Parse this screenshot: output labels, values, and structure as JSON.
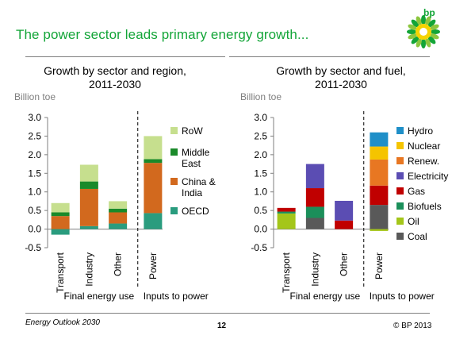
{
  "header": {
    "title": "The power sector leads primary energy growth...",
    "logo_text": "bp",
    "colors": {
      "title": "#13a538",
      "logo_green": "#13a538",
      "logo_yellow": "#f5d300"
    }
  },
  "footer": {
    "left": "Energy Outlook 2030",
    "page": "12",
    "right": "© BP 2013"
  },
  "chart_data": [
    {
      "type": "bar",
      "stacked": true,
      "title": "Growth by sector and region,\n2011-2030",
      "ylabel": "Billion toe",
      "ylim": [
        -0.5,
        3.0
      ],
      "yticks": [
        "3.0",
        "2.5",
        "2.0",
        "1.5",
        "1.0",
        "0.5",
        "0.0",
        "-0.5"
      ],
      "categories": [
        "Transport",
        "Industry",
        "Other",
        "Power"
      ],
      "groups": [
        {
          "label": "Final energy use",
          "categories": [
            "Transport",
            "Industry",
            "Other"
          ]
        },
        {
          "label": "Inputs to power",
          "categories": [
            "Power"
          ]
        }
      ],
      "legend_position": "right",
      "series": [
        {
          "name": "OECD",
          "color": "#2a9c7e",
          "values": [
            -0.15,
            0.08,
            0.15,
            0.43
          ]
        },
        {
          "name": "China &\nIndia",
          "color": "#d2691e",
          "values": [
            0.35,
            1.0,
            0.3,
            1.35
          ]
        },
        {
          "name": "Middle\nEast",
          "color": "#1a8a2a",
          "values": [
            0.1,
            0.2,
            0.1,
            0.1
          ]
        },
        {
          "name": "RoW",
          "color": "#c6df8e",
          "values": [
            0.25,
            0.45,
            0.2,
            0.62
          ]
        }
      ]
    },
    {
      "type": "bar",
      "stacked": true,
      "title": "Growth by sector and fuel,\n2011-2030",
      "ylabel": "Billion toe",
      "ylim": [
        -0.5,
        3.0
      ],
      "yticks": [
        "3.0",
        "2.5",
        "2.0",
        "1.5",
        "1.0",
        "0.5",
        "0.0",
        "-0.5"
      ],
      "categories": [
        "Transport",
        "Industry",
        "Other",
        "Power"
      ],
      "groups": [
        {
          "label": "Final energy use",
          "categories": [
            "Transport",
            "Industry",
            "Other"
          ]
        },
        {
          "label": "Inputs to power",
          "categories": [
            "Power"
          ]
        }
      ],
      "legend_position": "right",
      "series": [
        {
          "name": "Coal",
          "color": "#595959",
          "values": [
            0.0,
            0.3,
            0.0,
            0.65
          ]
        },
        {
          "name": "Oil",
          "color": "#a4c61a",
          "values": [
            0.42,
            0.0,
            0.0,
            -0.05
          ]
        },
        {
          "name": "Biofuels",
          "color": "#1b8f5a",
          "values": [
            0.05,
            0.3,
            0.0,
            0.0
          ]
        },
        {
          "name": "Gas",
          "color": "#c00000",
          "values": [
            0.1,
            0.5,
            0.23,
            0.52
          ]
        },
        {
          "name": "Electricity",
          "color": "#5b4db3",
          "values": [
            0.0,
            0.65,
            0.53,
            0.0
          ]
        },
        {
          "name": "Renew.",
          "color": "#e87722",
          "values": [
            0.0,
            0.0,
            0.0,
            0.7
          ]
        },
        {
          "name": "Nuclear",
          "color": "#f5c400",
          "values": [
            0.0,
            0.0,
            0.0,
            0.35
          ]
        },
        {
          "name": "Hydro",
          "color": "#1f8fc8",
          "values": [
            0.0,
            0.0,
            0.0,
            0.38
          ]
        }
      ]
    }
  ]
}
